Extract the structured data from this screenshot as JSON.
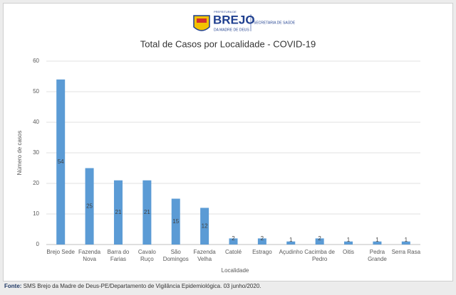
{
  "header": {
    "prefix": "PREFEITURA DE",
    "name": "BREJO",
    "suffix": "DA MADRE DE DEUS",
    "department": "SECRETARIA DE SAÚDE"
  },
  "chart_data": {
    "type": "bar",
    "title": "Total de Casos por Localidade - COVID-19",
    "x_label": "Localidade",
    "y_label": "Número de casos",
    "categories": [
      "Brejo Sede",
      "Fazenda Nova",
      "Barra do Farias",
      "Cavalo Ruço",
      "São Domingos",
      "Fazenda Velha",
      "Catolé",
      "Estrago",
      "Açudinho",
      "Cacimba de Pedro",
      "Oitis",
      "Pedra Grande",
      "Serra Rasa"
    ],
    "values": [
      54,
      25,
      21,
      21,
      15,
      12,
      2,
      2,
      1,
      2,
      1,
      1,
      1
    ],
    "color": "#5b9bd5",
    "ylim": [
      0,
      60
    ],
    "yticks": [
      0,
      10,
      20,
      30,
      40,
      50,
      60
    ],
    "grid": true
  },
  "footer": {
    "source_label": "Fonte:",
    "source_text": "SMS Brejo da Madre de Deus-PE/Departamento de Vigilância Epidemiológica. 03 junho/2020."
  }
}
